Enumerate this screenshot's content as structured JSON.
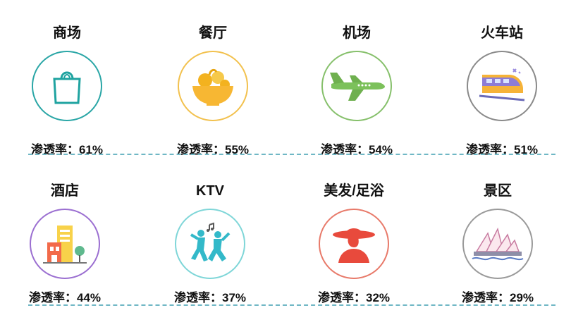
{
  "rows": [
    {
      "items": [
        {
          "label": "商场",
          "stat": "渗透率：61%",
          "percent": 61,
          "icon": "shopping-bag-icon",
          "ring": "#2aa6a6"
        },
        {
          "label": "餐厅",
          "stat": "渗透率：55%",
          "percent": 55,
          "icon": "fruit-basket-icon",
          "ring": "#f2c14e"
        },
        {
          "label": "机场",
          "stat": "渗透率：54%",
          "percent": 54,
          "icon": "airplane-icon",
          "ring": "#86c06b"
        },
        {
          "label": "火车站",
          "stat": "渗透率：51%",
          "percent": 51,
          "icon": "train-icon",
          "ring": "#8a8a8a"
        }
      ]
    },
    {
      "items": [
        {
          "label": "酒店",
          "stat": "渗透率：44%",
          "percent": 44,
          "icon": "hotel-building-icon",
          "ring": "#9b6fd1"
        },
        {
          "label": "KTV",
          "stat": "渗透率：37%",
          "percent": 37,
          "icon": "dancing-people-icon",
          "ring": "#7fd6d8"
        },
        {
          "label": "美发/足浴",
          "stat": "渗透率：32%",
          "percent": 32,
          "icon": "woman-hat-icon",
          "ring": "#e87a6a"
        },
        {
          "label": "景区",
          "stat": "渗透率：29%",
          "percent": 29,
          "icon": "opera-house-icon",
          "ring": "#9a9a9a"
        }
      ]
    }
  ],
  "colors": {
    "divider": "#6fb7c5"
  }
}
